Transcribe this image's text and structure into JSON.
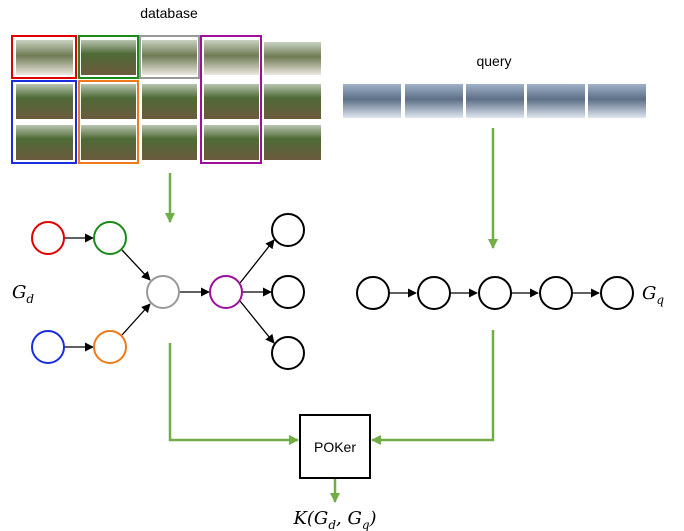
{
  "labels": {
    "database": "database",
    "query": "query",
    "poker": "POKer",
    "graph_database": {
      "main": "G",
      "sub": "d"
    },
    "graph_query": {
      "main": "G",
      "sub": "q"
    },
    "kernel": {
      "open": "K(G",
      "sub1": "d",
      "mid": ", G",
      "sub2": "q",
      "close": ")"
    }
  }
}
